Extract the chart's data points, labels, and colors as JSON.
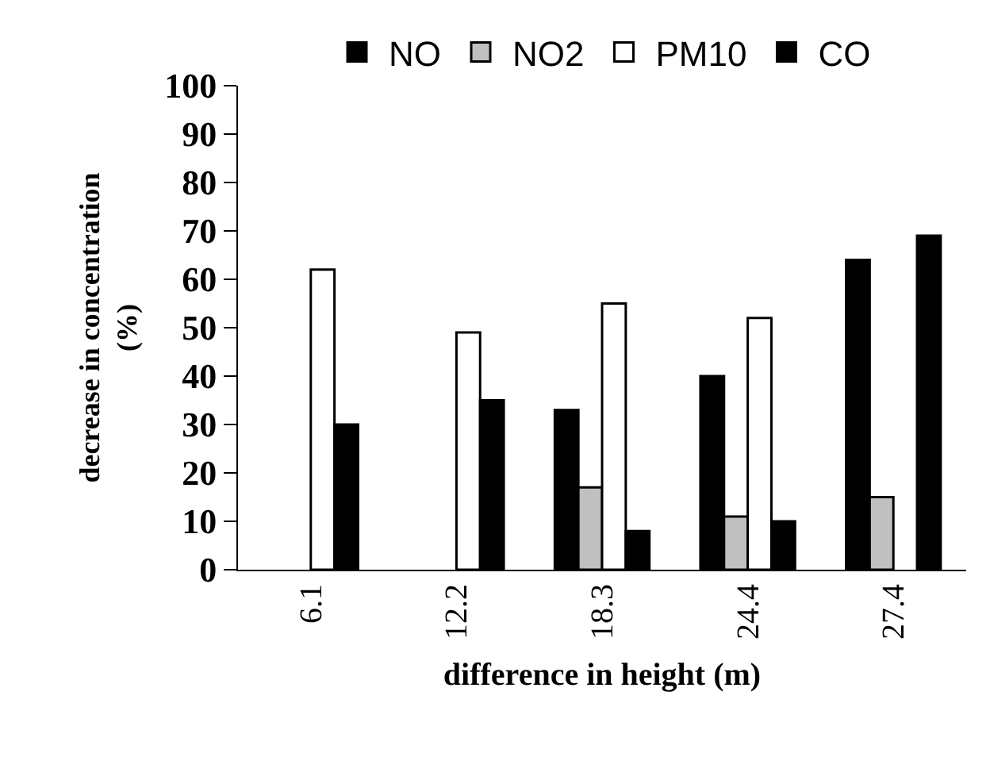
{
  "chart_data": {
    "type": "bar",
    "xlabel": "difference in height (m)",
    "ylabel": "decrease in concentration\n(%)",
    "categories": [
      "6.1",
      "12.2",
      "18.3",
      "24.4",
      "27.4"
    ],
    "series": [
      {
        "name": "NO",
        "color": "#000000",
        "values": [
          null,
          null,
          33,
          40,
          64
        ]
      },
      {
        "name": "NO2",
        "color": "#c0c0c0",
        "values": [
          null,
          null,
          17,
          11,
          15
        ]
      },
      {
        "name": "PM10",
        "color": "#ffffff",
        "values": [
          62,
          49,
          55,
          52,
          null
        ]
      },
      {
        "name": "CO",
        "color": "#000000",
        "values": [
          30,
          35,
          8,
          10,
          69
        ]
      }
    ],
    "ylim": [
      0,
      100
    ],
    "yticks": [
      0,
      10,
      20,
      30,
      40,
      50,
      60,
      70,
      80,
      90,
      100
    ],
    "grid": false,
    "legend": "top"
  }
}
